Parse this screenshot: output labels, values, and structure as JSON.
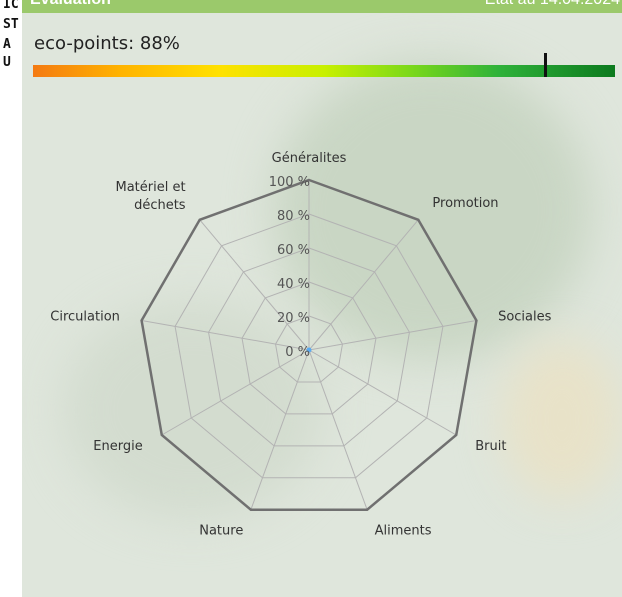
{
  "side_fragments": [
    "IC",
    "ST",
    "A",
    "U"
  ],
  "header": {
    "title": "Evaluation",
    "status": "Etat au 14.04.2024"
  },
  "eco": {
    "label": "eco-points: 88%",
    "value_percent": 88
  },
  "chart_data": {
    "type": "radar",
    "axes": [
      "Généralites",
      "Promotion",
      "Sociales",
      "Bruit",
      "Aliments",
      "Nature",
      "Energie",
      "Circulation",
      "Matériel et déchets"
    ],
    "tick_labels": [
      "0 %",
      "20 %",
      "40 %",
      "60 %",
      "80 %",
      "100 %"
    ],
    "range": [
      0,
      100
    ],
    "series": [
      {
        "values": [
          100,
          100,
          100,
          100,
          100,
          100,
          100,
          100,
          100
        ],
        "color": "#707070"
      }
    ],
    "grid": true
  }
}
